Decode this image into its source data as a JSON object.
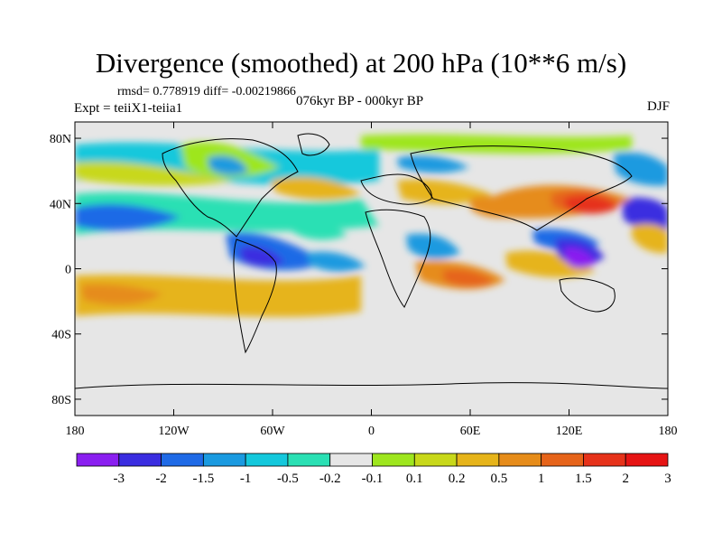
{
  "figure": {
    "title": "Divergence (smoothed) at 200 hPa (10**6 m/s)",
    "stats": "rmsd= 0.778919 diff= -0.00219866",
    "experiment": "Expt = teiiX1-teiia1",
    "period": "076kyr BP - 000kyr BP",
    "season": "DJF"
  },
  "map": {
    "lat_ticks": [
      "80N",
      "40N",
      "0",
      "40S",
      "80S"
    ],
    "lon_ticks": [
      "180",
      "120W",
      "60W",
      "0",
      "60E",
      "120E",
      "180"
    ]
  },
  "colorbar": {
    "labels": [
      "-3",
      "-2",
      "-1.5",
      "-1",
      "-0.5",
      "-0.2",
      "-0.1",
      "0.1",
      "0.2",
      "0.5",
      "1",
      "1.5",
      "2",
      "3"
    ],
    "colors": [
      "#8a1ff0",
      "#3a2de0",
      "#1f6ae6",
      "#1a9ae0",
      "#14c8dc",
      "#2ae0b4",
      "#e6e6e6",
      "#9ee61e",
      "#c8d81a",
      "#e6b41a",
      "#e68c1a",
      "#e6641a",
      "#e6321a",
      "#e61414"
    ]
  },
  "chart_data": {
    "type": "heatmap",
    "variable": "Divergence (smoothed) at 200 hPa",
    "units": "10**6 m/s",
    "levels": [
      -3,
      -2,
      -1.5,
      -1,
      -0.5,
      -0.2,
      -0.1,
      0.1,
      0.2,
      0.5,
      1,
      1.5,
      2,
      3
    ],
    "lon_range": [
      -180,
      180
    ],
    "lat_range": [
      -90,
      90
    ],
    "features": [
      {
        "lon": 135,
        "lat": 30,
        "value": 2.5
      },
      {
        "lon": 60,
        "lat": -10,
        "value": 2.0
      },
      {
        "lon": 50,
        "lat": 30,
        "value": 1.5
      },
      {
        "lon": 140,
        "lat": 5,
        "value": -2.5
      },
      {
        "lon": -80,
        "lat": 0,
        "value": -2.0
      },
      {
        "lon": -170,
        "lat": 30,
        "value": -2.0
      },
      {
        "lon": 175,
        "lat": 30,
        "value": -2.0
      },
      {
        "lon": -40,
        "lat": 5,
        "value": -1.5
      },
      {
        "lon": 30,
        "lat": 10,
        "value": -1.5
      },
      {
        "lon": -150,
        "lat": -20,
        "value": 1.0
      },
      {
        "lon": -50,
        "lat": 60,
        "value": -1.0
      },
      {
        "lon": 90,
        "lat": 55,
        "value": 0.5
      }
    ]
  }
}
